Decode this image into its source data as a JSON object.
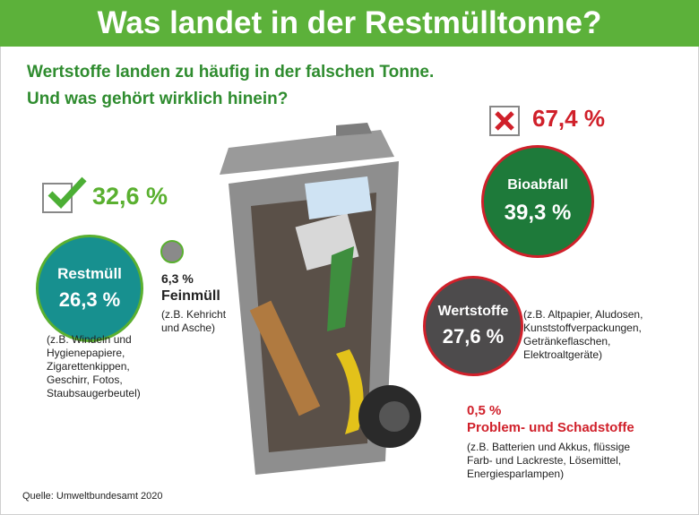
{
  "title": "Was landet in der Restmülltonne?",
  "subtitle": [
    "Wertstoffe landen zu häufig in der falschen Tonne.",
    "Und was gehört wirklich hinein?"
  ],
  "correct": {
    "icon": "checkmark-icon",
    "percent": "32,6 %",
    "color": "#5ab030"
  },
  "wrong": {
    "icon": "cross-icon",
    "percent": "67,4 %",
    "color": "#d0202a"
  },
  "restmuell": {
    "label": "Restmüll",
    "percent": "26,3 %",
    "desc": [
      "(z.B. Windeln und",
      "Hygienepapiere,",
      "Zigarettenkippen,",
      "Geschirr, Fotos,",
      "Staubsaugerbeutel)"
    ],
    "color": "#17908f"
  },
  "feinmuell": {
    "percent": "6,3 %",
    "label": "Feinmüll",
    "desc": [
      "(z.B. Kehricht",
      "und Asche)"
    ]
  },
  "bioabfall": {
    "label": "Bioabfall",
    "percent": "39,3 %",
    "color": "#1e7a3a"
  },
  "wertstoffe": {
    "label": "Wertstoffe",
    "percent": "27,6 %",
    "desc": [
      "(z.B. Altpapier, Aludosen,",
      "Kunststoffverpackungen,",
      "Getränkeflaschen,",
      "Elektroaltgeräte)"
    ],
    "color": "#4d4b4c"
  },
  "problemstoffe": {
    "percent": "0,5 %",
    "label": "Problem- und Schadstoffe",
    "desc": [
      "(z.B. Batterien und Akkus, flüssige",
      "Farb- und Lackreste, Lösemittel,",
      "Energiesparlampen)"
    ]
  },
  "source": "Quelle: Umweltbundesamt 2020"
}
